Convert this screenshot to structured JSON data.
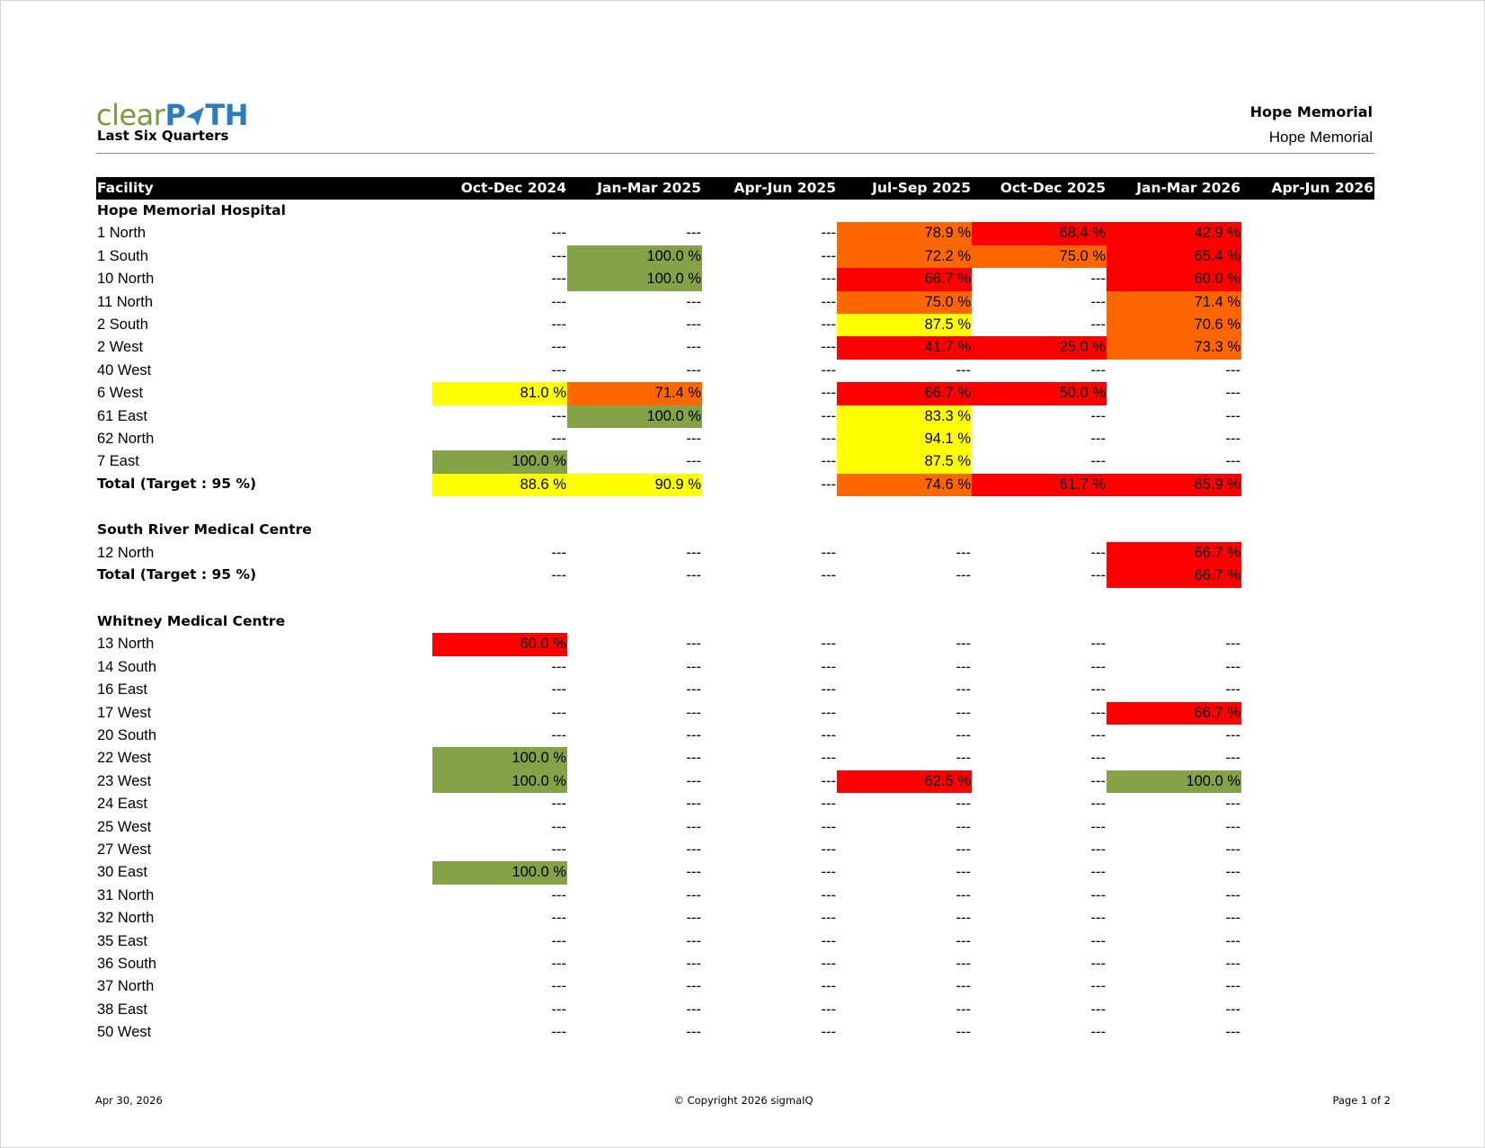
{
  "header": {
    "logo_part1": "clear",
    "logo_part2": "P",
    "logo_part3": "TH",
    "subtitle": "Last Six Quarters",
    "site_title": "Hope Memorial",
    "site_subtitle": "Hope Memorial"
  },
  "table": {
    "columns": [
      "Facility",
      "Oct-Dec 2024",
      "Jan-Mar 2025",
      "Apr-Jun 2025",
      "Jul-Sep 2025",
      "Oct-Dec 2025",
      "Jan-Mar 2026",
      "Apr-Jun 2026"
    ],
    "legend_colors": {
      "g": "#84a247",
      "y": "#ffff00",
      "o": "#ff6600",
      "r": "#ff0000"
    },
    "sections": [
      {
        "name": "Hope Memorial Hospital",
        "rows": [
          {
            "label": "1 North",
            "cells": [
              "---",
              "---",
              "---",
              "78.9 %",
              "68.4 %",
              "42.9 %",
              ""
            ],
            "colors": [
              "",
              "",
              "",
              "o",
              "r",
              "r",
              ""
            ]
          },
          {
            "label": "1 South",
            "cells": [
              "---",
              "100.0 %",
              "---",
              "72.2 %",
              "75.0 %",
              "65.4 %",
              ""
            ],
            "colors": [
              "",
              "g",
              "",
              "o",
              "o",
              "r",
              ""
            ]
          },
          {
            "label": "10 North",
            "cells": [
              "---",
              "100.0 %",
              "---",
              "66.7 %",
              "---",
              "60.0 %",
              ""
            ],
            "colors": [
              "",
              "g",
              "",
              "r",
              "",
              "r",
              ""
            ]
          },
          {
            "label": "11 North",
            "cells": [
              "---",
              "---",
              "---",
              "75.0 %",
              "---",
              "71.4 %",
              ""
            ],
            "colors": [
              "",
              "",
              "",
              "o",
              "",
              "o",
              ""
            ]
          },
          {
            "label": "2 South",
            "cells": [
              "---",
              "---",
              "---",
              "87.5 %",
              "---",
              "70.6 %",
              ""
            ],
            "colors": [
              "",
              "",
              "",
              "y",
              "",
              "o",
              ""
            ]
          },
          {
            "label": "2 West",
            "cells": [
              "---",
              "---",
              "---",
              "41.7 %",
              "25.0 %",
              "73.3 %",
              ""
            ],
            "colors": [
              "",
              "",
              "",
              "r",
              "r",
              "o",
              ""
            ]
          },
          {
            "label": "40 West",
            "cells": [
              "---",
              "---",
              "---",
              "---",
              "---",
              "---",
              ""
            ],
            "colors": [
              "",
              "",
              "",
              "",
              "",
              "",
              ""
            ]
          },
          {
            "label": "6 West",
            "cells": [
              "81.0 %",
              "71.4 %",
              "---",
              "66.7 %",
              "50.0 %",
              "---",
              ""
            ],
            "colors": [
              "y",
              "o",
              "",
              "r",
              "r",
              "",
              ""
            ]
          },
          {
            "label": "61 East",
            "cells": [
              "---",
              "100.0 %",
              "---",
              "83.3 %",
              "---",
              "---",
              ""
            ],
            "colors": [
              "",
              "g",
              "",
              "y",
              "",
              "",
              ""
            ]
          },
          {
            "label": "62 North",
            "cells": [
              "---",
              "---",
              "---",
              "94.1 %",
              "---",
              "---",
              ""
            ],
            "colors": [
              "",
              "",
              "",
              "y",
              "",
              "",
              ""
            ]
          },
          {
            "label": "7 East",
            "cells": [
              "100.0 %",
              "---",
              "---",
              "87.5 %",
              "---",
              "---",
              ""
            ],
            "colors": [
              "g",
              "",
              "",
              "y",
              "",
              "",
              ""
            ]
          }
        ],
        "total": {
          "label": "Total  (Target : 95 %)",
          "cells": [
            "88.6 %",
            "90.9 %",
            "---",
            "74.6 %",
            "61.7 %",
            "65.9 %",
            ""
          ],
          "colors": [
            "y",
            "y",
            "",
            "o",
            "r",
            "r",
            ""
          ]
        }
      },
      {
        "name": "South River Medical Centre",
        "rows": [
          {
            "label": "12 North",
            "cells": [
              "---",
              "---",
              "---",
              "---",
              "---",
              "66.7 %",
              ""
            ],
            "colors": [
              "",
              "",
              "",
              "",
              "",
              "r",
              ""
            ]
          }
        ],
        "total": {
          "label": "Total  (Target : 95 %)",
          "cells": [
            "---",
            "---",
            "---",
            "---",
            "---",
            "66.7 %",
            ""
          ],
          "colors": [
            "",
            "",
            "",
            "",
            "",
            "r",
            ""
          ]
        }
      },
      {
        "name": "Whitney Medical Centre",
        "rows": [
          {
            "label": "13 North",
            "cells": [
              "60.0 %",
              "---",
              "---",
              "---",
              "---",
              "---",
              ""
            ],
            "colors": [
              "r",
              "",
              "",
              "",
              "",
              "",
              ""
            ]
          },
          {
            "label": "14 South",
            "cells": [
              "---",
              "---",
              "---",
              "---",
              "---",
              "---",
              ""
            ],
            "colors": [
              "",
              "",
              "",
              "",
              "",
              "",
              ""
            ]
          },
          {
            "label": "16 East",
            "cells": [
              "---",
              "---",
              "---",
              "---",
              "---",
              "---",
              ""
            ],
            "colors": [
              "",
              "",
              "",
              "",
              "",
              "",
              ""
            ]
          },
          {
            "label": "17 West",
            "cells": [
              "---",
              "---",
              "---",
              "---",
              "---",
              "66.7 %",
              ""
            ],
            "colors": [
              "",
              "",
              "",
              "",
              "",
              "r",
              ""
            ]
          },
          {
            "label": "20 South",
            "cells": [
              "---",
              "---",
              "---",
              "---",
              "---",
              "---",
              ""
            ],
            "colors": [
              "",
              "",
              "",
              "",
              "",
              "",
              ""
            ]
          },
          {
            "label": "22 West",
            "cells": [
              "100.0 %",
              "---",
              "---",
              "---",
              "---",
              "---",
              ""
            ],
            "colors": [
              "g",
              "",
              "",
              "",
              "",
              "",
              ""
            ]
          },
          {
            "label": "23 West",
            "cells": [
              "100.0 %",
              "---",
              "---",
              "62.5 %",
              "---",
              "100.0 %",
              ""
            ],
            "colors": [
              "g",
              "",
              "",
              "r",
              "",
              "g",
              ""
            ]
          },
          {
            "label": "24 East",
            "cells": [
              "---",
              "---",
              "---",
              "---",
              "---",
              "---",
              ""
            ],
            "colors": [
              "",
              "",
              "",
              "",
              "",
              "",
              ""
            ]
          },
          {
            "label": "25 West",
            "cells": [
              "---",
              "---",
              "---",
              "---",
              "---",
              "---",
              ""
            ],
            "colors": [
              "",
              "",
              "",
              "",
              "",
              "",
              ""
            ]
          },
          {
            "label": "27 West",
            "cells": [
              "---",
              "---",
              "---",
              "---",
              "---",
              "---",
              ""
            ],
            "colors": [
              "",
              "",
              "",
              "",
              "",
              "",
              ""
            ]
          },
          {
            "label": "30 East",
            "cells": [
              "100.0 %",
              "---",
              "---",
              "---",
              "---",
              "---",
              ""
            ],
            "colors": [
              "g",
              "",
              "",
              "",
              "",
              "",
              ""
            ]
          },
          {
            "label": "31 North",
            "cells": [
              "---",
              "---",
              "---",
              "---",
              "---",
              "---",
              ""
            ],
            "colors": [
              "",
              "",
              "",
              "",
              "",
              "",
              ""
            ]
          },
          {
            "label": "32 North",
            "cells": [
              "---",
              "---",
              "---",
              "---",
              "---",
              "---",
              ""
            ],
            "colors": [
              "",
              "",
              "",
              "",
              "",
              "",
              ""
            ]
          },
          {
            "label": "35 East",
            "cells": [
              "---",
              "---",
              "---",
              "---",
              "---",
              "---",
              ""
            ],
            "colors": [
              "",
              "",
              "",
              "",
              "",
              "",
              ""
            ]
          },
          {
            "label": "36 South",
            "cells": [
              "---",
              "---",
              "---",
              "---",
              "---",
              "---",
              ""
            ],
            "colors": [
              "",
              "",
              "",
              "",
              "",
              "",
              ""
            ]
          },
          {
            "label": "37 North",
            "cells": [
              "---",
              "---",
              "---",
              "---",
              "---",
              "---",
              ""
            ],
            "colors": [
              "",
              "",
              "",
              "",
              "",
              "",
              ""
            ]
          },
          {
            "label": "38 East",
            "cells": [
              "---",
              "---",
              "---",
              "---",
              "---",
              "---",
              ""
            ],
            "colors": [
              "",
              "",
              "",
              "",
              "",
              "",
              ""
            ]
          },
          {
            "label": "50 West",
            "cells": [
              "---",
              "---",
              "---",
              "---",
              "---",
              "---",
              ""
            ],
            "colors": [
              "",
              "",
              "",
              "",
              "",
              "",
              ""
            ]
          }
        ]
      }
    ]
  },
  "footer": {
    "date": "Apr 30, 2026",
    "copyright": "© Copyright 2026 sigmaIQ",
    "page": "Page 1 of 2"
  }
}
